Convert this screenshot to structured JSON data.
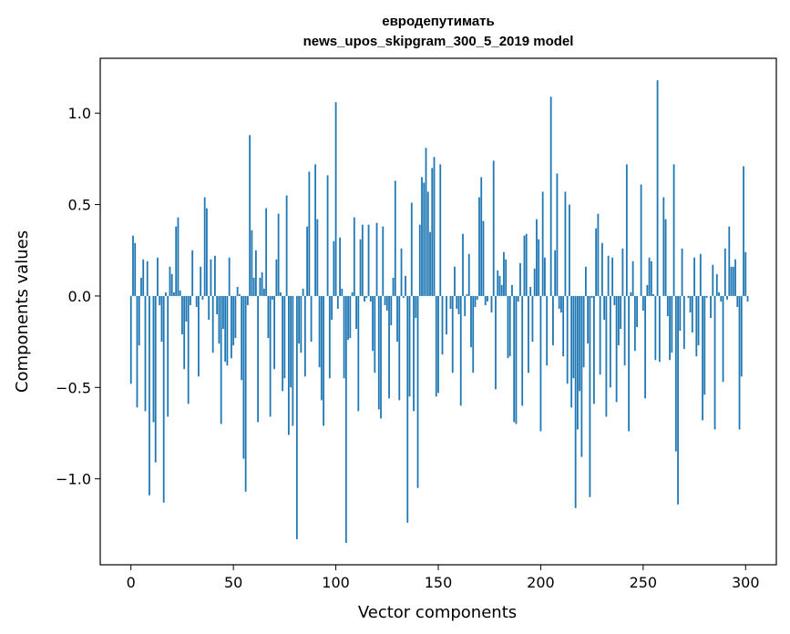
{
  "chart_data": {
    "type": "bar",
    "title_line1": "евродепутимать",
    "title_line2": "news_upos_skipgram_300_5_2019 model",
    "xlabel": "Vector components",
    "ylabel": "Components values",
    "xlim": [
      -15,
      315
    ],
    "ylim": [
      -1.47,
      1.3
    ],
    "x_ticks": [
      0,
      50,
      100,
      150,
      200,
      250,
      300
    ],
    "x_tick_labels": [
      "0",
      "50",
      "100",
      "150",
      "200",
      "250",
      "300"
    ],
    "y_ticks": [
      -1.0,
      -0.5,
      0.0,
      0.5,
      1.0
    ],
    "y_tick_labels": [
      "−1.0",
      "−0.5",
      "0.0",
      "0.5",
      "1.0"
    ],
    "bar_color": "#1f77b4",
    "grid": false,
    "values": [
      -0.48,
      0.33,
      0.29,
      -0.61,
      -0.27,
      0.1,
      0.2,
      -0.63,
      0.19,
      -1.09,
      0.0,
      -0.69,
      -0.91,
      0.21,
      -0.05,
      -0.25,
      -1.13,
      0.02,
      -0.66,
      0.16,
      0.12,
      0.02,
      0.38,
      0.43,
      0.03,
      -0.21,
      -0.4,
      -0.14,
      -0.59,
      -0.05,
      0.25,
      0.0,
      -0.06,
      -0.44,
      0.16,
      -0.02,
      0.54,
      0.48,
      -0.13,
      0.2,
      -0.31,
      0.22,
      -0.1,
      -0.26,
      -0.7,
      -0.18,
      -0.36,
      -0.38,
      0.21,
      -0.34,
      -0.27,
      -0.23,
      0.05,
      0.01,
      -0.46,
      -0.89,
      -1.07,
      -0.05,
      0.88,
      0.36,
      0.1,
      0.25,
      -0.69,
      0.1,
      0.13,
      0.04,
      0.48,
      -0.23,
      -0.66,
      -0.02,
      -0.4,
      0.2,
      0.45,
      0.02,
      -0.52,
      -0.45,
      0.55,
      -0.76,
      -0.5,
      -0.71,
      0.0,
      -1.33,
      -0.26,
      -0.31,
      0.04,
      -0.44,
      0.38,
      0.68,
      -0.25,
      0.0,
      0.72,
      0.42,
      -0.39,
      -0.57,
      -0.71,
      0.0,
      0.66,
      -0.45,
      -0.13,
      0.3,
      1.06,
      -0.07,
      0.32,
      0.04,
      -0.45,
      -1.35,
      -0.24,
      -0.23,
      0.02,
      0.43,
      -0.18,
      -0.63,
      0.31,
      0.39,
      -0.03,
      -0.01,
      0.39,
      -0.03,
      -0.3,
      -0.42,
      0.4,
      -0.62,
      -0.67,
      0.38,
      -0.05,
      -0.08,
      -0.56,
      -0.16,
      0.1,
      0.63,
      -0.25,
      -0.57,
      0.26,
      -0.01,
      0.11,
      -1.24,
      -0.55,
      0.51,
      -0.63,
      -0.12,
      -1.05,
      0.39,
      0.65,
      0.62,
      0.81,
      0.57,
      0.35,
      0.7,
      0.76,
      -0.55,
      -0.53,
      0.72,
      -0.32,
      0.0,
      -0.21,
      0.0,
      -0.07,
      -0.42,
      0.16,
      -0.07,
      -0.1,
      -0.6,
      0.34,
      -0.11,
      0.01,
      0.23,
      -0.28,
      -0.42,
      -0.06,
      -0.02,
      0.54,
      0.65,
      0.41,
      -0.05,
      -0.03,
      0.0,
      -0.09,
      0.74,
      -0.51,
      0.14,
      0.11,
      0.06,
      0.24,
      0.2,
      -0.34,
      -0.33,
      0.06,
      -0.69,
      -0.7,
      -0.03,
      0.18,
      -0.6,
      0.33,
      0.34,
      -0.42,
      0.05,
      -0.25,
      0.15,
      0.42,
      0.31,
      -0.74,
      0.57,
      0.21,
      -0.38,
      0.0,
      1.09,
      -0.27,
      0.25,
      0.67,
      -0.07,
      -0.09,
      -0.33,
      0.57,
      -0.48,
      0.5,
      -0.61,
      -0.45,
      -1.16,
      -0.73,
      -0.52,
      -0.88,
      -0.39,
      0.16,
      -0.26,
      -1.1,
      -0.01,
      -0.59,
      0.37,
      0.45,
      -0.43,
      0.29,
      -0.13,
      -0.66,
      0.22,
      -0.5,
      0.21,
      -0.05,
      -0.58,
      -0.27,
      -0.18,
      0.26,
      -0.38,
      0.72,
      -0.74,
      0.02,
      0.19,
      -0.3,
      -0.17,
      0.0,
      0.61,
      -0.08,
      -0.56,
      0.06,
      0.21,
      0.19,
      0.01,
      -0.35,
      1.18,
      -0.36,
      0.0,
      0.54,
      0.42,
      -0.11,
      -0.35,
      -0.31,
      0.72,
      -0.85,
      -1.14,
      -0.19,
      0.26,
      -0.29,
      0.0,
      -0.01,
      -0.09,
      -0.2,
      0.21,
      -0.33,
      -0.27,
      0.23,
      -0.68,
      -0.54,
      -0.01,
      0.0,
      -0.12,
      0.17,
      -0.73,
      0.12,
      0.02,
      -0.03,
      -0.47,
      0.26,
      -0.02,
      0.38,
      0.16,
      0.16,
      0.2,
      -0.06,
      -0.73,
      -0.44,
      0.71,
      0.24,
      -0.03
    ]
  }
}
